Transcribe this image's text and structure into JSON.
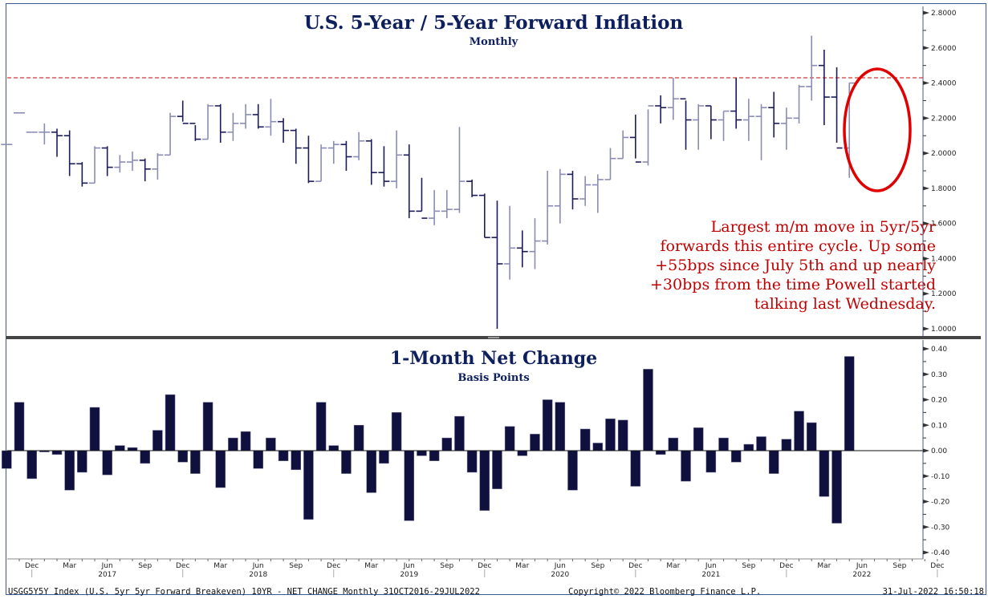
{
  "chart_data": [
    {
      "type": "ohlc",
      "title": "U.S. 5-Year / 5-Year Forward Inflation",
      "subtitle": "Monthly",
      "ylim": [
        1.0,
        2.8
      ],
      "yticks": [
        "2.8000",
        "2.6000",
        "2.4000",
        "2.2000",
        "2.0000",
        "1.8000",
        "1.6000",
        "1.4000",
        "1.2000",
        "1.0000"
      ],
      "ytick_values": [
        2.8,
        2.6,
        2.4,
        2.2,
        2.0,
        1.8,
        1.6,
        1.4,
        1.2,
        1.0
      ],
      "reference_line": {
        "value": 2.43,
        "color": "#e03030",
        "style": "dashed"
      },
      "annotation": {
        "lines": [
          "Largest m/m move in 5yr/5yr",
          "forwards this entire cycle.  Up some",
          "+55bps since July 5th and up nearly",
          "+30bps from the time Powell started",
          "talking last Wednesday."
        ],
        "color": "#c00000",
        "circle_color": "#e00000"
      },
      "grid": false
    },
    {
      "type": "bar",
      "title": "1-Month Net Change",
      "subtitle": "Basis Points",
      "ylim": [
        -0.4,
        0.4
      ],
      "yticks": [
        "0.40",
        "0.30",
        "0.20",
        "0.10",
        "0.00",
        "-0.10",
        "-0.20",
        "-0.30",
        "-0.40"
      ],
      "ytick_values": [
        0.4,
        0.3,
        0.2,
        0.1,
        0.0,
        -0.1,
        -0.2,
        -0.3,
        -0.4
      ],
      "values": [
        -0.07,
        0.19,
        -0.11,
        -0.005,
        -0.015,
        -0.155,
        -0.085,
        0.17,
        -0.095,
        0.02,
        0.012,
        -0.05,
        0.08,
        0.22,
        -0.045,
        -0.09,
        0.19,
        -0.145,
        0.05,
        0.075,
        -0.07,
        0.05,
        -0.04,
        -0.075,
        -0.27,
        0.19,
        0.02,
        -0.09,
        0.1,
        -0.165,
        -0.05,
        0.15,
        -0.275,
        -0.02,
        -0.04,
        0.05,
        0.135,
        -0.085,
        -0.235,
        -0.15,
        0.095,
        -0.02,
        0.065,
        0.2,
        0.19,
        -0.155,
        0.085,
        0.03,
        0.125,
        0.12,
        -0.14,
        0.32,
        -0.015,
        0.05,
        -0.12,
        0.09,
        -0.085,
        0.05,
        -0.045,
        0.025,
        0.055,
        -0.09,
        0.045,
        0.155,
        0.11,
        -0.18,
        -0.285,
        0.37
      ],
      "bar_color": "#10103f",
      "grid": false
    }
  ],
  "ohlc": {
    "bars": [
      [
        2.05,
        2.05,
        2.05,
        2.05
      ],
      [
        2.23,
        2.23,
        2.23,
        2.23
      ],
      [
        2.12,
        2.12,
        2.12,
        2.12
      ],
      [
        2.12,
        2.17,
        2.05,
        2.12
      ],
      [
        2.12,
        2.14,
        1.98,
        2.1
      ],
      [
        2.1,
        2.13,
        1.87,
        1.94
      ],
      [
        1.94,
        1.95,
        1.81,
        1.83
      ],
      [
        1.83,
        2.04,
        1.83,
        2.03
      ],
      [
        2.03,
        2.04,
        1.87,
        1.92
      ],
      [
        1.92,
        1.99,
        1.89,
        1.95
      ],
      [
        1.95,
        2.01,
        1.9,
        1.96
      ],
      [
        1.96,
        1.97,
        1.84,
        1.91
      ],
      [
        1.91,
        2.0,
        1.85,
        1.99
      ],
      [
        1.99,
        2.23,
        1.99,
        2.21
      ],
      [
        2.21,
        2.3,
        2.18,
        2.17
      ],
      [
        2.17,
        2.16,
        2.07,
        2.08
      ],
      [
        2.08,
        2.28,
        2.08,
        2.27
      ],
      [
        2.27,
        2.28,
        2.06,
        2.12
      ],
      [
        2.12,
        2.23,
        2.07,
        2.17
      ],
      [
        2.17,
        2.28,
        2.14,
        2.22
      ],
      [
        2.22,
        2.28,
        2.14,
        2.15
      ],
      [
        2.15,
        2.31,
        2.1,
        2.18
      ],
      [
        2.18,
        2.2,
        2.06,
        2.13
      ],
      [
        2.13,
        2.14,
        1.94,
        2.03
      ],
      [
        2.03,
        2.1,
        1.83,
        1.84
      ],
      [
        1.84,
        2.05,
        1.84,
        2.03
      ],
      [
        2.03,
        2.07,
        1.94,
        2.05
      ],
      [
        2.05,
        2.07,
        1.9,
        1.98
      ],
      [
        1.98,
        2.12,
        1.96,
        2.07
      ],
      [
        2.07,
        2.08,
        1.82,
        1.89
      ],
      [
        1.89,
        2.04,
        1.81,
        1.84
      ],
      [
        1.84,
        2.13,
        1.8,
        1.99
      ],
      [
        1.99,
        2.05,
        1.63,
        1.67
      ],
      [
        1.67,
        1.86,
        1.67,
        1.63
      ],
      [
        1.63,
        1.79,
        1.59,
        1.67
      ],
      [
        1.67,
        1.79,
        1.63,
        1.68
      ],
      [
        1.68,
        2.15,
        1.66,
        1.84
      ],
      [
        1.84,
        1.85,
        1.75,
        1.76
      ],
      [
        1.76,
        1.77,
        1.52,
        1.52
      ],
      [
        1.52,
        1.73,
        1.0,
        1.37
      ],
      [
        1.37,
        1.7,
        1.28,
        1.46
      ],
      [
        1.46,
        1.56,
        1.35,
        1.44
      ],
      [
        1.44,
        1.63,
        1.34,
        1.5
      ],
      [
        1.5,
        1.9,
        1.48,
        1.7
      ],
      [
        1.7,
        1.91,
        1.6,
        1.88
      ],
      [
        1.88,
        1.9,
        1.68,
        1.74
      ],
      [
        1.74,
        1.87,
        1.7,
        1.82
      ],
      [
        1.82,
        1.88,
        1.66,
        1.85
      ],
      [
        1.85,
        2.03,
        1.85,
        1.97
      ],
      [
        1.97,
        2.13,
        1.97,
        2.09
      ],
      [
        2.09,
        2.22,
        1.97,
        1.95
      ],
      [
        1.95,
        2.25,
        1.93,
        2.27
      ],
      [
        2.27,
        2.33,
        2.17,
        2.26
      ],
      [
        2.26,
        2.43,
        2.19,
        2.31
      ],
      [
        2.31,
        2.3,
        2.02,
        2.19
      ],
      [
        2.19,
        2.28,
        2.02,
        2.27
      ],
      [
        2.27,
        2.27,
        2.08,
        2.19
      ],
      [
        2.19,
        2.24,
        2.07,
        2.24
      ],
      [
        2.24,
        2.43,
        2.14,
        2.19
      ],
      [
        2.19,
        2.31,
        2.07,
        2.21
      ],
      [
        2.21,
        2.28,
        1.96,
        2.26
      ],
      [
        2.26,
        2.35,
        2.09,
        2.17
      ],
      [
        2.17,
        2.26,
        2.02,
        2.2
      ],
      [
        2.2,
        2.39,
        2.17,
        2.38
      ],
      [
        2.38,
        2.67,
        2.3,
        2.5
      ],
      [
        2.5,
        2.59,
        2.16,
        2.32
      ],
      [
        2.32,
        2.49,
        2.06,
        2.03
      ],
      [
        2.03,
        2.4,
        1.86,
        2.4
      ]
    ],
    "up_color": "#8a8cb4",
    "down_color": "#1c1c5a"
  },
  "xaxis": {
    "months": [
      "Mar",
      "Jun",
      "Sep",
      "Dec"
    ],
    "years": [
      "2017",
      "2018",
      "2019",
      "2020",
      "2021",
      "2022"
    ],
    "start": "Nov 2016",
    "extent_months": 74
  },
  "footer": {
    "left": "USGG5Y5Y Index (U.S. 5yr 5yr Forward Breakeven) 10YR - NET CHANGE  Monthly 31OCT2016-29JUL2022",
    "center": "Copyright© 2022 Bloomberg Finance L.P.",
    "right": "31-Jul-2022 16:50:18"
  }
}
